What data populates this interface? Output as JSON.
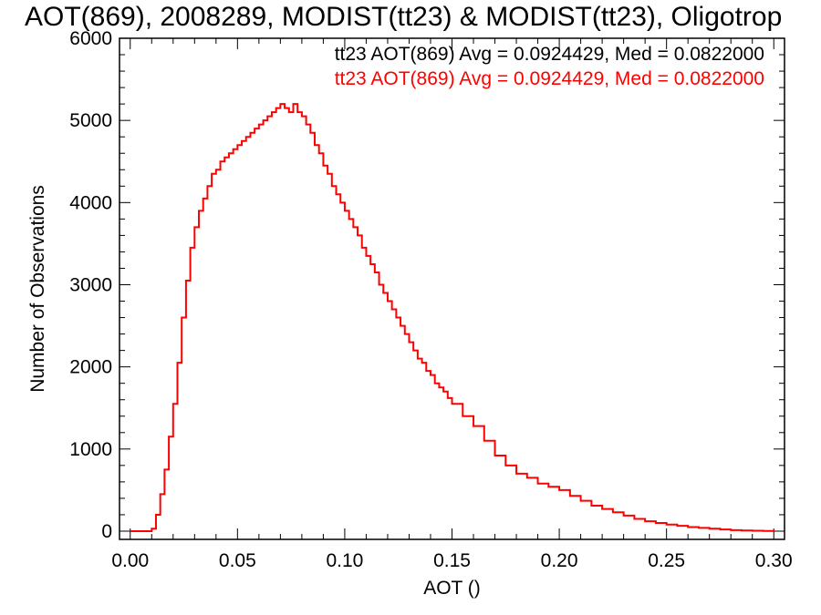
{
  "chart_data": {
    "type": "histogram",
    "title": "AOT(869), 2008289, MODIST(tt23) & MODIST(tt23), Oligotrop",
    "xlabel": "AOT ()",
    "ylabel": "Number of Observations",
    "xlim": [
      -0.005,
      0.305
    ],
    "ylim": [
      -100,
      6000
    ],
    "x_ticks": [
      "0.00",
      "0.05",
      "0.10",
      "0.15",
      "0.20",
      "0.25",
      "0.30"
    ],
    "y_ticks": [
      "0",
      "1000",
      "2000",
      "3000",
      "4000",
      "5000",
      "6000"
    ],
    "grid": false,
    "legend_position": "top-right",
    "legend": [
      {
        "text": "tt23 AOT(869) Avg = 0.0924429, Med = 0.0822000",
        "color": "#000000"
      },
      {
        "text": "tt23 AOT(869) Avg = 0.0924429, Med = 0.0822000",
        "color": "#ff0000"
      }
    ],
    "series": [
      {
        "color": "#ff0000",
        "x": [
          0.0,
          0.01,
          0.012,
          0.014,
          0.016,
          0.018,
          0.02,
          0.022,
          0.024,
          0.026,
          0.028,
          0.03,
          0.032,
          0.034,
          0.036,
          0.038,
          0.04,
          0.042,
          0.044,
          0.046,
          0.048,
          0.05,
          0.052,
          0.054,
          0.056,
          0.058,
          0.06,
          0.062,
          0.064,
          0.066,
          0.068,
          0.07,
          0.072,
          0.074,
          0.076,
          0.078,
          0.08,
          0.082,
          0.084,
          0.086,
          0.088,
          0.09,
          0.092,
          0.094,
          0.096,
          0.098,
          0.1,
          0.102,
          0.104,
          0.106,
          0.108,
          0.11,
          0.112,
          0.114,
          0.116,
          0.118,
          0.12,
          0.122,
          0.124,
          0.126,
          0.128,
          0.13,
          0.132,
          0.134,
          0.136,
          0.138,
          0.14,
          0.142,
          0.144,
          0.146,
          0.148,
          0.15,
          0.155,
          0.16,
          0.165,
          0.17,
          0.175,
          0.18,
          0.185,
          0.19,
          0.195,
          0.2,
          0.205,
          0.21,
          0.215,
          0.22,
          0.225,
          0.23,
          0.235,
          0.24,
          0.245,
          0.25,
          0.255,
          0.26,
          0.265,
          0.27,
          0.275,
          0.28,
          0.285,
          0.29,
          0.295,
          0.3
        ],
        "values": [
          0,
          30,
          200,
          450,
          750,
          1150,
          1550,
          2050,
          2600,
          3050,
          3450,
          3700,
          3900,
          4050,
          4200,
          4350,
          4400,
          4500,
          4550,
          4600,
          4650,
          4700,
          4750,
          4800,
          4850,
          4900,
          4950,
          5000,
          5050,
          5100,
          5150,
          5200,
          5150,
          5100,
          5200,
          5100,
          5050,
          4950,
          4850,
          4700,
          4600,
          4450,
          4350,
          4200,
          4100,
          4000,
          3900,
          3800,
          3700,
          3600,
          3450,
          3350,
          3250,
          3150,
          3000,
          2900,
          2800,
          2700,
          2600,
          2500,
          2400,
          2300,
          2200,
          2100,
          2050,
          1950,
          1900,
          1800,
          1750,
          1700,
          1620,
          1550,
          1400,
          1280,
          1100,
          920,
          800,
          700,
          650,
          580,
          540,
          500,
          430,
          370,
          310,
          270,
          230,
          190,
          150,
          120,
          100,
          80,
          65,
          50,
          40,
          30,
          20,
          12,
          8,
          5,
          2,
          0
        ]
      }
    ]
  }
}
